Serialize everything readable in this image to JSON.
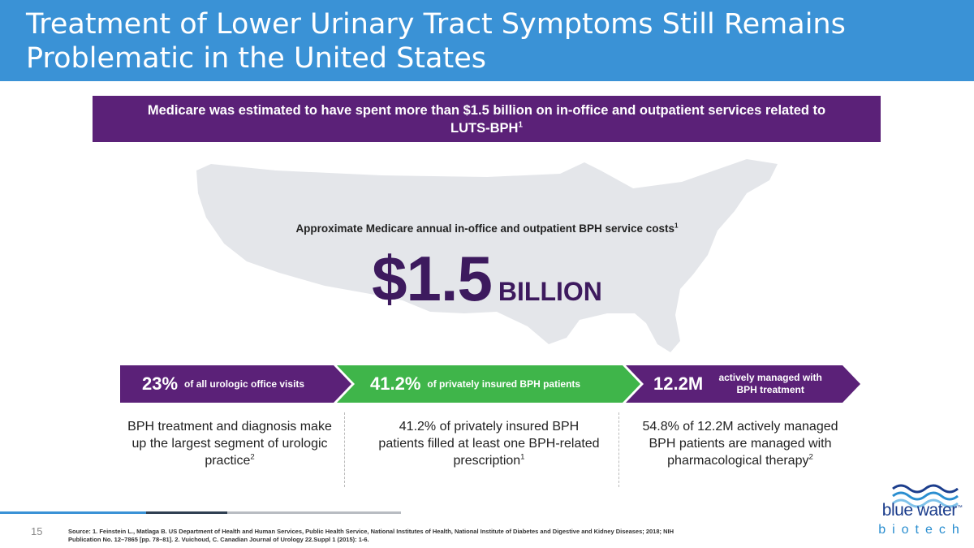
{
  "slide": {
    "title": "Treatment of Lower Urinary Tract Symptoms Still Remains Problematic in the United States",
    "page_number": "15"
  },
  "banner": {
    "text": "Medicare was estimated to have spent more than $1.5 billion on in-office and outpatient services related to LUTS-BPH",
    "ref": "1"
  },
  "cost": {
    "label": "Approximate Medicare annual in-office and outpatient BPH service costs",
    "ref": "1",
    "value": "$1.5",
    "unit": "BILLION"
  },
  "stats": [
    {
      "value": "23%",
      "label": "of all urologic office visits",
      "description": "BPH treatment and diagnosis make up the largest segment of urologic practice",
      "ref": "2"
    },
    {
      "value": "41.2%",
      "label": "of privately insured BPH patients",
      "description": "41.2% of privately insured BPH patients filled at least one BPH-related prescription",
      "ref": "1"
    },
    {
      "value": "12.2M",
      "label": "actively managed with BPH treatment",
      "description": "54.8% of 12.2M actively managed BPH patients are managed with pharmacological therapy",
      "ref": "2"
    }
  ],
  "source": "Source: 1. Feinstein L., Matlaga B. US Department of Health and Human Services, Public Health Service, National Institutes of Health, National Institute of Diabetes and Digestive and Kidney Diseases; 2018; NIH Publication No. 12–7865 [pp. 78–81]. 2. Vuichoud, C. Canadian Journal of Urology 22.Suppl 1 (2015): 1-6.",
  "logo": {
    "line1": "blue water",
    "tm": "™",
    "line2": "biotech"
  },
  "colors": {
    "header": "#3a92d6",
    "purple": "#5b2178",
    "dark_purple": "#3d1a5e",
    "green": "#3fb54a",
    "map_gray": "#e4e6ea",
    "logo_navy": "#1b3d8c",
    "logo_blue": "#2a8ed0"
  },
  "icons": {
    "map": "us-map-silhouette",
    "logo": "wave-icon"
  }
}
